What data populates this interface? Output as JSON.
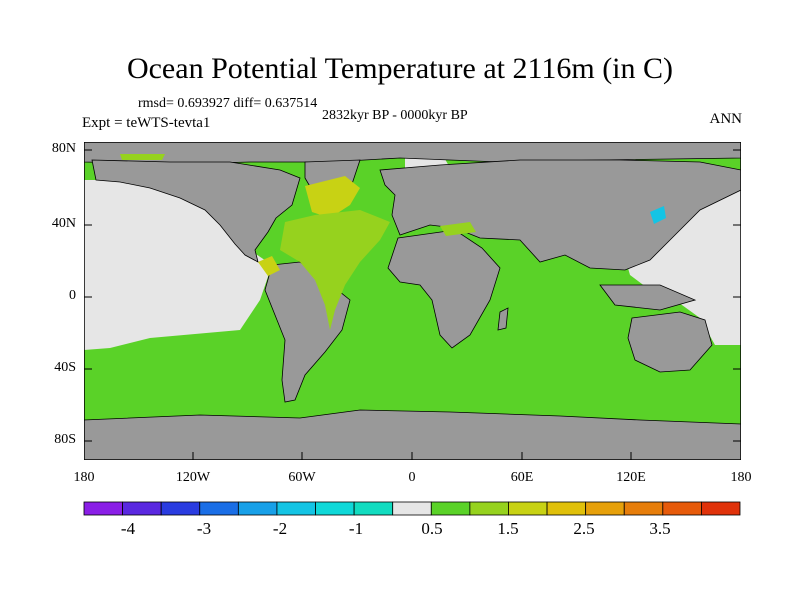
{
  "title": "Ocean Potential Temperature at 2116m (in C)",
  "stats": "rmsd= 0.693927 diff= 0.637514",
  "period": "2832kyr BP - 0000kyr BP",
  "experiment": "Expt = teWTS-tevta1",
  "season": "ANN",
  "lat_ticks": [
    "80N",
    "40N",
    "0",
    "40S",
    "80S"
  ],
  "lon_ticks": [
    "180",
    "120W",
    "60W",
    "0",
    "60E",
    "120E",
    "180"
  ],
  "colorbar": {
    "colors": [
      "#8a1ee6",
      "#5a28e0",
      "#2a3ce0",
      "#1a6ee6",
      "#18a0e8",
      "#14c4e4",
      "#10d8d8",
      "#12dcc0",
      "#e6e6e6",
      "#5ad228",
      "#96d21e",
      "#c8d214",
      "#e0c00a",
      "#e6a00a",
      "#e67d0a",
      "#e65a0a",
      "#e0320a"
    ],
    "labels": [
      "-4",
      "-3",
      "-2",
      "-1",
      "0.5",
      "1.5",
      "2.5",
      "3.5"
    ]
  },
  "legend_colors": {
    "land": "#999999",
    "near_zero": "#e6e6e6",
    "warm_1": "#5ad228",
    "warm_2": "#96d21e",
    "warm_3": "#c8d214",
    "cool_4": "#14c4e4"
  }
}
